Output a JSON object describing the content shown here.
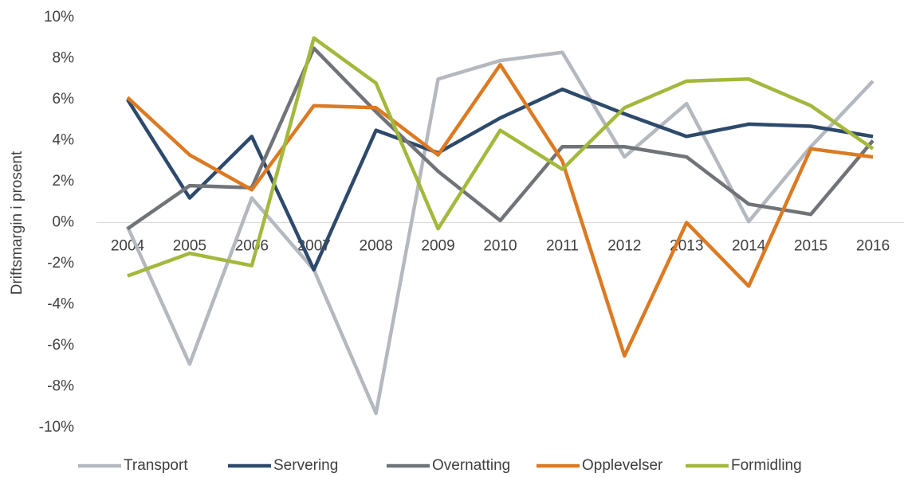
{
  "chart_data": {
    "type": "line",
    "ylabel": "Driftsmargin i prosent",
    "categories": [
      "2004",
      "2005",
      "2006",
      "2007",
      "2008",
      "2009",
      "2010",
      "2011",
      "2012",
      "2013",
      "2014",
      "2015",
      "2016"
    ],
    "series": [
      {
        "name": "Transport",
        "color": "#b4b8bf",
        "values": [
          -0.2,
          -6.9,
          1.2,
          -2.3,
          -9.3,
          7.0,
          7.9,
          8.3,
          3.2,
          5.8,
          0.05,
          3.7,
          6.9
        ]
      },
      {
        "name": "Servering",
        "color": "#2e4a6b",
        "values": [
          6.0,
          1.2,
          4.2,
          -2.3,
          4.5,
          3.4,
          5.1,
          6.5,
          5.3,
          4.2,
          4.8,
          4.7,
          4.2
        ]
      },
      {
        "name": "Overnatting",
        "color": "#707378",
        "values": [
          -0.3,
          1.8,
          1.7,
          8.5,
          5.4,
          2.5,
          0.1,
          3.7,
          3.7,
          3.2,
          0.9,
          0.4,
          4.0
        ]
      },
      {
        "name": "Opplevelser",
        "color": "#dc7a22",
        "values": [
          6.1,
          3.3,
          1.6,
          5.7,
          5.6,
          3.3,
          7.7,
          3.0,
          -6.5,
          0,
          -3.1,
          3.6,
          3.2
        ]
      },
      {
        "name": "Formidling",
        "color": "#a3b83c",
        "values": [
          -2.6,
          -1.5,
          -2.1,
          9.0,
          6.8,
          -0.3,
          4.5,
          2.6,
          5.6,
          6.9,
          7.0,
          5.7,
          3.6
        ]
      }
    ],
    "ylim": [
      -10,
      10
    ],
    "yticks": [
      {
        "value": -10,
        "label": "-10%"
      },
      {
        "value": -8,
        "label": "-8%"
      },
      {
        "value": -6,
        "label": "-6%"
      },
      {
        "value": -4,
        "label": "-4%"
      },
      {
        "value": -2,
        "label": "-2%"
      },
      {
        "value": 0,
        "label": "0%"
      },
      {
        "value": 2,
        "label": "2%"
      },
      {
        "value": 4,
        "label": "4%"
      },
      {
        "value": 6,
        "label": "6%"
      },
      {
        "value": 8,
        "label": "8%"
      },
      {
        "value": 10,
        "label": "10%"
      }
    ],
    "legend": "bottom"
  }
}
